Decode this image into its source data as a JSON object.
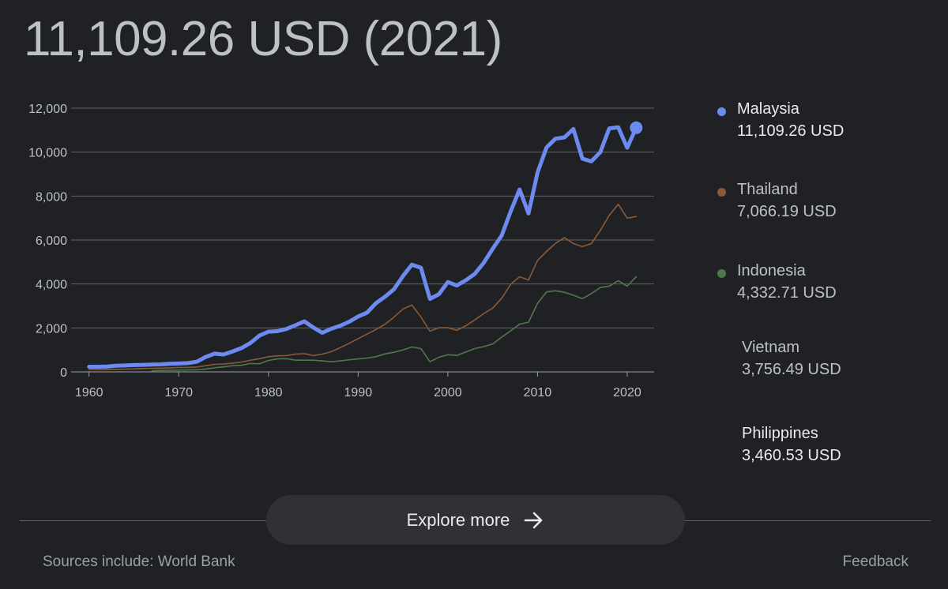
{
  "headline": "11,109.26 USD (2021)",
  "chart_data": {
    "type": "line",
    "title": "",
    "xlabel": "",
    "ylabel": "",
    "xlim": [
      1958,
      2023
    ],
    "ylim": [
      0,
      12000
    ],
    "x_ticks": [
      1960,
      1970,
      1980,
      1990,
      2000,
      2010,
      2020
    ],
    "x_tick_labels": [
      "1960",
      "1970",
      "1980",
      "1990",
      "2000",
      "2010",
      "2020"
    ],
    "y_ticks": [
      0,
      2000,
      4000,
      6000,
      8000,
      10000,
      12000
    ],
    "y_tick_labels": [
      "0",
      "2,000",
      "4,000",
      "6,000",
      "8,000",
      "10,000",
      "12,000"
    ],
    "grid": true,
    "legend_position": "right",
    "series": [
      {
        "name": "Malaysia",
        "color": "#6c8aef",
        "highlighted": true,
        "x": [
          1960,
          1961,
          1962,
          1963,
          1964,
          1965,
          1966,
          1967,
          1968,
          1969,
          1970,
          1971,
          1972,
          1973,
          1974,
          1975,
          1976,
          1977,
          1978,
          1979,
          1980,
          1981,
          1982,
          1983,
          1984,
          1985,
          1986,
          1987,
          1988,
          1989,
          1990,
          1991,
          1992,
          1993,
          1994,
          1995,
          1996,
          1997,
          1998,
          1999,
          2000,
          2001,
          2002,
          2003,
          2004,
          2005,
          2006,
          2007,
          2008,
          2009,
          2010,
          2011,
          2012,
          2013,
          2014,
          2015,
          2016,
          2017,
          2018,
          2019,
          2020,
          2021
        ],
        "values": [
          235,
          235,
          245,
          280,
          290,
          310,
          320,
          330,
          340,
          365,
          380,
          400,
          460,
          680,
          830,
          790,
          930,
          1080,
          1320,
          1650,
          1830,
          1850,
          1950,
          2120,
          2300,
          2020,
          1780,
          1960,
          2100,
          2280,
          2520,
          2700,
          3130,
          3420,
          3760,
          4360,
          4880,
          4740,
          3320,
          3530,
          4090,
          3930,
          4170,
          4460,
          4960,
          5600,
          6200,
          7290,
          8300,
          7210,
          9070,
          10210,
          10610,
          10670,
          11050,
          9700,
          9580,
          10000,
          11080,
          11130,
          10200,
          11109.26
        ]
      },
      {
        "name": "Thailand",
        "color": "#8a5a38",
        "x": [
          1960,
          1961,
          1962,
          1963,
          1964,
          1965,
          1966,
          1967,
          1968,
          1969,
          1970,
          1971,
          1972,
          1973,
          1974,
          1975,
          1976,
          1977,
          1978,
          1979,
          1980,
          1981,
          1982,
          1983,
          1984,
          1985,
          1986,
          1987,
          1988,
          1989,
          1990,
          1991,
          1992,
          1993,
          1994,
          1995,
          1996,
          1997,
          1998,
          1999,
          2000,
          2001,
          2002,
          2003,
          2004,
          2005,
          2006,
          2007,
          2008,
          2009,
          2010,
          2011,
          2012,
          2013,
          2014,
          2015,
          2016,
          2017,
          2018,
          2019,
          2020,
          2021
        ],
        "values": [
          100,
          105,
          110,
          115,
          125,
          135,
          150,
          160,
          170,
          185,
          200,
          205,
          220,
          280,
          340,
          360,
          400,
          450,
          530,
          600,
          690,
          730,
          740,
          810,
          830,
          740,
          810,
          920,
          1100,
          1300,
          1510,
          1720,
          1930,
          2170,
          2490,
          2860,
          3040,
          2500,
          1850,
          2010,
          2010,
          1890,
          2100,
          2360,
          2650,
          2900,
          3350,
          3980,
          4330,
          4180,
          5070,
          5480,
          5850,
          6110,
          5840,
          5700,
          5840,
          6440,
          7120,
          7630,
          7000,
          7066.19
        ]
      },
      {
        "name": "Indonesia",
        "color": "#4e7a49",
        "x": [
          1967,
          1968,
          1969,
          1970,
          1971,
          1972,
          1973,
          1974,
          1975,
          1976,
          1977,
          1978,
          1979,
          1980,
          1981,
          1982,
          1983,
          1984,
          1985,
          1986,
          1987,
          1988,
          1989,
          1990,
          1991,
          1992,
          1993,
          1994,
          1995,
          1996,
          1997,
          1998,
          1999,
          2000,
          2001,
          2002,
          2003,
          2004,
          2005,
          2006,
          2007,
          2008,
          2009,
          2010,
          2011,
          2012,
          2013,
          2014,
          2015,
          2016,
          2017,
          2018,
          2019,
          2020,
          2021
        ],
        "values": [
          55,
          65,
          75,
          80,
          85,
          95,
          130,
          190,
          230,
          280,
          300,
          380,
          370,
          520,
          590,
          600,
          530,
          530,
          530,
          500,
          460,
          500,
          550,
          590,
          630,
          690,
          820,
          890,
          1000,
          1130,
          1060,
          460,
          670,
          780,
          750,
          900,
          1060,
          1150,
          1270,
          1580,
          1860,
          2170,
          2260,
          3120,
          3640,
          3690,
          3620,
          3490,
          3330,
          3560,
          3840,
          3900,
          4150,
          3900,
          4332.71
        ]
      },
      {
        "name": "Vietnam",
        "color": "#8ab4f8",
        "x": [],
        "values": [],
        "legend_value": "3,756.49 USD"
      },
      {
        "name": "Philippines",
        "color": "#e8eaed",
        "x": [],
        "values": [],
        "legend_value": "3,460.53 USD"
      }
    ]
  },
  "legend": [
    {
      "name": "Malaysia",
      "value": "11,109.26 USD",
      "dot_color": "#6c8aef",
      "name_color": "#e8eaed",
      "value_color": "#e8eaed"
    },
    {
      "name": "Thailand",
      "value": "7,066.19 USD",
      "dot_color": "#8a5a38",
      "name_color": "#bdc1c6",
      "value_color": "#bdc1c6"
    },
    {
      "name": "Indonesia",
      "value": "4,332.71 USD",
      "dot_color": "#4e7a49",
      "name_color": "#bdc1c6",
      "value_color": "#bdc1c6"
    },
    {
      "name": "Vietnam",
      "value": "3,756.49 USD",
      "dot_color": "",
      "name_color": "#bdc1c6",
      "value_color": "#bdc1c6"
    },
    {
      "name": "Philippines",
      "value": "3,460.53 USD",
      "dot_color": "",
      "name_color": "#e8eaed",
      "value_color": "#e8eaed"
    }
  ],
  "explore": {
    "label": "Explore more",
    "icon": "arrow-right-icon"
  },
  "footer": {
    "sources": "Sources include: World Bank",
    "feedback": "Feedback"
  }
}
